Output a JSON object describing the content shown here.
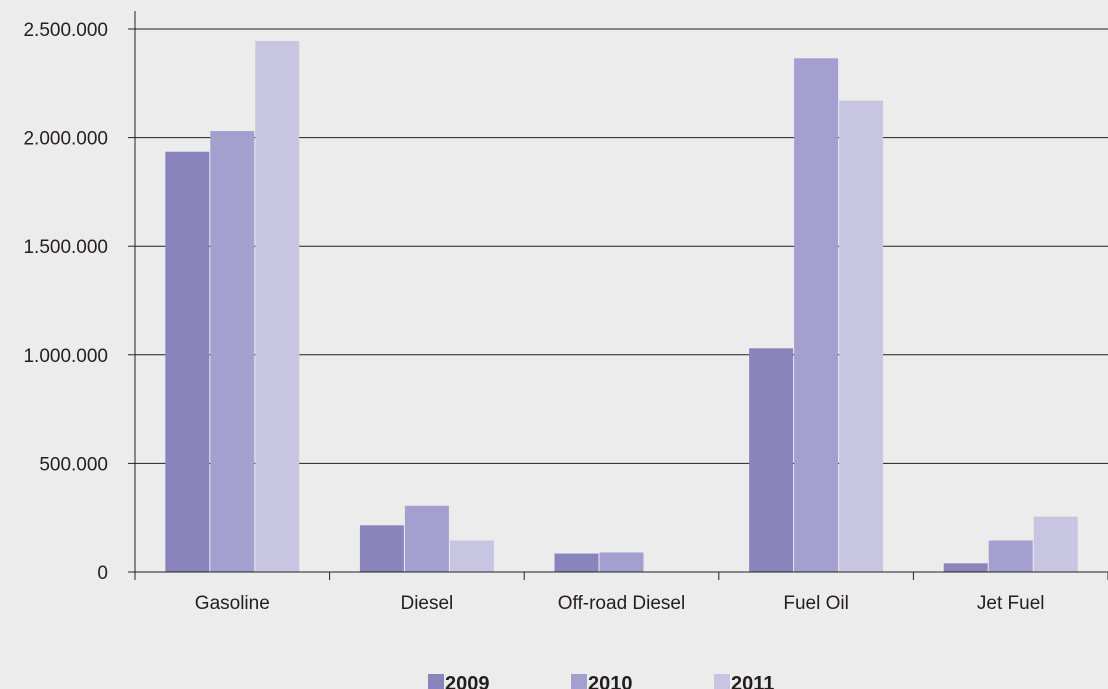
{
  "chart_data": {
    "type": "bar",
    "categories": [
      "Gasoline",
      "Diesel",
      "Off-road Diesel",
      "Fuel Oil",
      "Jet Fuel"
    ],
    "series": [
      {
        "name": "2009",
        "color": "#8a84bd",
        "values": [
          1935000,
          215000,
          85000,
          1030000,
          40000
        ]
      },
      {
        "name": "2010",
        "color": "#a39fcf",
        "values": [
          2030000,
          305000,
          90000,
          2365000,
          145000
        ]
      },
      {
        "name": "2011",
        "color": "#c8c5e3",
        "values": [
          2445000,
          145000,
          0,
          2170000,
          255000
        ]
      }
    ],
    "y_ticks": [
      0,
      500000,
      1000000,
      1500000,
      2000000,
      2500000
    ],
    "y_tick_labels": [
      "0",
      "500.000",
      "1.000.000",
      "1.500.000",
      "2.000.000",
      "2.500.000"
    ],
    "ylim": [
      0,
      2500000
    ],
    "grid": true,
    "legend_position": "bottom-center",
    "title": "",
    "xlabel": "",
    "ylabel": ""
  }
}
